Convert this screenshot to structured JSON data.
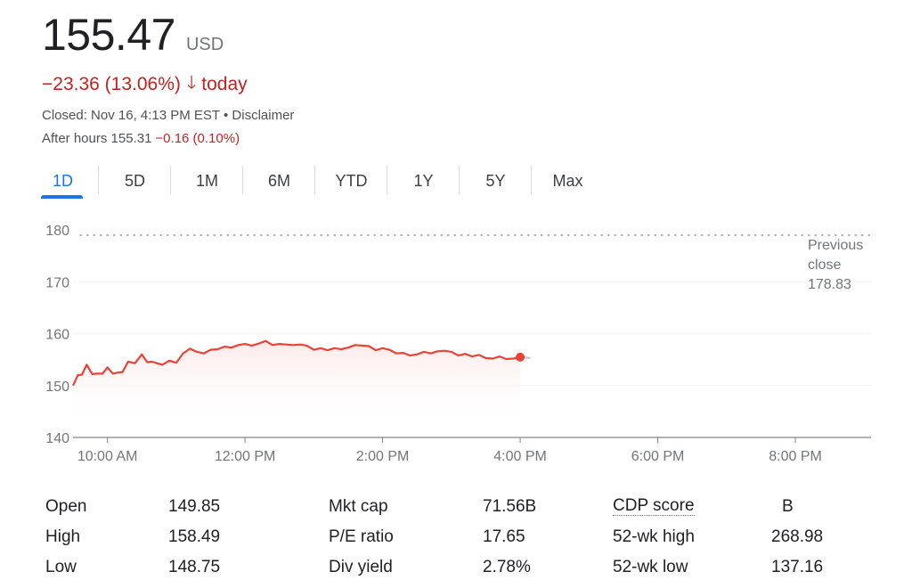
{
  "quote": {
    "price": "155.47",
    "currency": "USD",
    "change": "−23.36 (13.06%)",
    "change_arrow": "🡓",
    "change_suffix": "today",
    "closed_text": "Closed: Nov 16, 4:13 PM EST • Disclaimer",
    "after_hours_label": "After hours 155.31",
    "after_hours_change": "−0.16 (0.10%)"
  },
  "colors": {
    "negative": "#c5221f",
    "accent": "#1a73e8",
    "line": "#ea4335"
  },
  "tabs": [
    {
      "label": "1D",
      "active": true
    },
    {
      "label": "5D"
    },
    {
      "label": "1M"
    },
    {
      "label": "6M"
    },
    {
      "label": "YTD"
    },
    {
      "label": "1Y"
    },
    {
      "label": "5Y"
    },
    {
      "label": "Max"
    }
  ],
  "chart_data": {
    "type": "line",
    "ylim": [
      140,
      180
    ],
    "y_ticks": [
      "180",
      "170",
      "160",
      "150",
      "140"
    ],
    "x_ticks": [
      "10:00 AM",
      "12:00 PM",
      "2:00 PM",
      "4:00 PM",
      "6:00 PM",
      "8:00 PM"
    ],
    "x_tick_hours": [
      10,
      12,
      14,
      16,
      18,
      20
    ],
    "xlim_hours": [
      9.5,
      21.1
    ],
    "previous_close": {
      "label_lines": [
        "Previous",
        "close",
        "178.83"
      ],
      "value": 178.83
    },
    "series": [
      {
        "x_hours": [
          9.5,
          9.57,
          9.63,
          9.7,
          9.78,
          9.85,
          9.93,
          10.0,
          10.08,
          10.15,
          10.22,
          10.3,
          10.4,
          10.5,
          10.58,
          10.65,
          10.72,
          10.8,
          10.9,
          11.0,
          11.1,
          11.2,
          11.3,
          11.4,
          11.5,
          11.6,
          11.7,
          11.8,
          11.9,
          12.0,
          12.1,
          12.2,
          12.3,
          12.4,
          12.5,
          12.6,
          12.7,
          12.8,
          12.9,
          13.0,
          13.1,
          13.2,
          13.3,
          13.4,
          13.5,
          13.6,
          13.7,
          13.8,
          13.9,
          14.0,
          14.1,
          14.2,
          14.3,
          14.4,
          14.5,
          14.6,
          14.7,
          14.8,
          14.9,
          15.0,
          15.1,
          15.2,
          15.3,
          15.4,
          15.5,
          15.6,
          15.7,
          15.8,
          15.9,
          16.0
        ],
        "values": [
          150.0,
          152.0,
          152.1,
          154.0,
          152.2,
          152.3,
          152.3,
          153.5,
          152.3,
          152.5,
          152.6,
          154.6,
          154.3,
          156.0,
          154.5,
          154.6,
          154.3,
          154.0,
          154.8,
          154.4,
          156.2,
          157.1,
          156.5,
          156.2,
          156.9,
          157.0,
          157.5,
          157.3,
          157.8,
          158.0,
          157.7,
          158.1,
          158.6,
          157.8,
          158.0,
          157.9,
          157.8,
          157.9,
          157.7,
          156.9,
          157.2,
          156.8,
          157.2,
          157.0,
          157.3,
          157.8,
          157.7,
          157.6,
          156.8,
          157.2,
          156.9,
          156.2,
          156.3,
          155.8,
          156.0,
          156.5,
          156.2,
          156.6,
          156.7,
          156.5,
          155.8,
          156.1,
          155.6,
          155.9,
          155.3,
          155.2,
          155.6,
          155.1,
          155.2,
          155.47
        ],
        "after_hours_x": [
          16.0,
          16.15
        ],
        "after_hours_values": [
          155.47,
          155.31
        ]
      }
    ]
  },
  "stats": {
    "col1": [
      {
        "label": "Open",
        "value": "149.85"
      },
      {
        "label": "High",
        "value": "158.49"
      },
      {
        "label": "Low",
        "value": "148.75"
      }
    ],
    "col2": [
      {
        "label": "Mkt cap",
        "value": "71.56B"
      },
      {
        "label": "P/E ratio",
        "value": "17.65"
      },
      {
        "label": "Div yield",
        "value": "2.78%"
      }
    ],
    "col3": [
      {
        "label": "CDP score",
        "value": "B"
      },
      {
        "label": "52-wk high",
        "value": "268.98"
      },
      {
        "label": "52-wk low",
        "value": "137.16"
      }
    ]
  }
}
